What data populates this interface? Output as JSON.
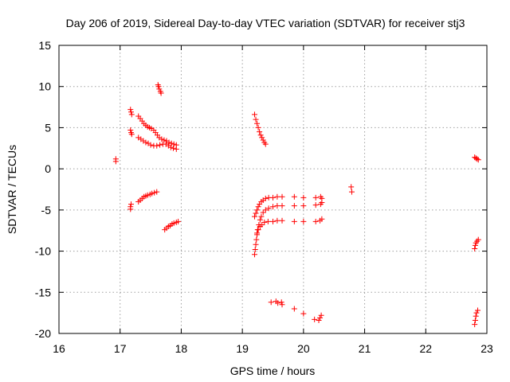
{
  "chart_data": {
    "type": "scatter",
    "title": "Day 206 of 2019, Sidereal Day-to-day VTEC variation (SDTVAR) for receiver stj3",
    "xlabel": "GPS time / hours",
    "ylabel": "SDTVAR / TECUs",
    "xlim": [
      16,
      23
    ],
    "ylim": [
      -20,
      15
    ],
    "xticks": [
      16,
      17,
      18,
      19,
      20,
      21,
      22,
      23
    ],
    "yticks": [
      -20,
      -15,
      -10,
      -5,
      0,
      5,
      10,
      15
    ],
    "xtick_labels": [
      "16",
      "17",
      "18",
      "19",
      "20",
      "21",
      "22",
      "23"
    ],
    "ytick_labels": [
      "-20",
      "-15",
      "-10",
      "-5",
      "0",
      "5",
      "10",
      "15"
    ],
    "grid": true,
    "marker": "+",
    "color": "#ff0000",
    "points": [
      [
        16.93,
        1.2
      ],
      [
        16.93,
        0.9
      ],
      [
        17.62,
        10.2
      ],
      [
        17.63,
        10.0
      ],
      [
        17.64,
        9.7
      ],
      [
        17.66,
        9.4
      ],
      [
        17.67,
        9.2
      ],
      [
        17.17,
        7.2
      ],
      [
        17.18,
        6.9
      ],
      [
        17.19,
        6.6
      ],
      [
        17.3,
        6.4
      ],
      [
        17.33,
        6.1
      ],
      [
        17.36,
        5.8
      ],
      [
        17.39,
        5.5
      ],
      [
        17.42,
        5.3
      ],
      [
        17.45,
        5.1
      ],
      [
        17.48,
        5.0
      ],
      [
        17.51,
        4.9
      ],
      [
        17.55,
        4.7
      ],
      [
        17.58,
        4.4
      ],
      [
        17.61,
        4.1
      ],
      [
        17.64,
        3.8
      ],
      [
        17.68,
        3.6
      ],
      [
        17.72,
        3.5
      ],
      [
        17.76,
        3.4
      ],
      [
        17.8,
        3.2
      ],
      [
        17.84,
        3.1
      ],
      [
        17.88,
        3.0
      ],
      [
        17.92,
        2.9
      ],
      [
        17.17,
        4.7
      ],
      [
        17.18,
        4.4
      ],
      [
        17.19,
        4.2
      ],
      [
        17.3,
        3.8
      ],
      [
        17.34,
        3.6
      ],
      [
        17.38,
        3.4
      ],
      [
        17.42,
        3.2
      ],
      [
        17.46,
        3.1
      ],
      [
        17.5,
        2.9
      ],
      [
        17.55,
        2.8
      ],
      [
        17.6,
        2.8
      ],
      [
        17.65,
        2.9
      ],
      [
        17.7,
        3.0
      ],
      [
        17.75,
        3.0
      ],
      [
        17.79,
        2.8
      ],
      [
        17.83,
        2.6
      ],
      [
        17.87,
        2.5
      ],
      [
        17.92,
        2.4
      ],
      [
        17.17,
        -4.6
      ],
      [
        17.17,
        -4.9
      ],
      [
        17.18,
        -4.3
      ],
      [
        17.3,
        -4.0
      ],
      [
        17.33,
        -3.8
      ],
      [
        17.36,
        -3.6
      ],
      [
        17.39,
        -3.4
      ],
      [
        17.42,
        -3.3
      ],
      [
        17.45,
        -3.2
      ],
      [
        17.49,
        -3.1
      ],
      [
        17.52,
        -3.0
      ],
      [
        17.56,
        -2.9
      ],
      [
        17.6,
        -2.8
      ],
      [
        17.73,
        -7.4
      ],
      [
        17.76,
        -7.2
      ],
      [
        17.79,
        -7.0
      ],
      [
        17.82,
        -6.9
      ],
      [
        17.85,
        -6.7
      ],
      [
        17.88,
        -6.6
      ],
      [
        17.92,
        -6.5
      ],
      [
        17.95,
        -6.4
      ],
      [
        19.2,
        6.6
      ],
      [
        19.22,
        6.0
      ],
      [
        19.24,
        5.5
      ],
      [
        19.26,
        5.0
      ],
      [
        19.28,
        4.5
      ],
      [
        19.3,
        4.1
      ],
      [
        19.32,
        3.8
      ],
      [
        19.34,
        3.5
      ],
      [
        19.36,
        3.2
      ],
      [
        19.38,
        3.0
      ],
      [
        19.2,
        -10.4
      ],
      [
        19.21,
        -9.8
      ],
      [
        19.22,
        -9.2
      ],
      [
        19.23,
        -8.6
      ],
      [
        19.24,
        -8.0
      ],
      [
        19.25,
        -7.4
      ],
      [
        19.27,
        -6.8
      ],
      [
        19.29,
        -6.2
      ],
      [
        19.31,
        -5.8
      ],
      [
        19.34,
        -5.3
      ],
      [
        19.38,
        -5.0
      ],
      [
        19.43,
        -4.8
      ],
      [
        19.5,
        -4.6
      ],
      [
        19.57,
        -4.5
      ],
      [
        19.65,
        -4.5
      ],
      [
        19.85,
        -4.5
      ],
      [
        20.0,
        -4.5
      ],
      [
        20.2,
        -4.4
      ],
      [
        20.28,
        -4.3
      ],
      [
        20.3,
        -4.1
      ],
      [
        19.2,
        -5.8
      ],
      [
        19.22,
        -5.4
      ],
      [
        19.24,
        -5.0
      ],
      [
        19.26,
        -4.6
      ],
      [
        19.28,
        -4.3
      ],
      [
        19.31,
        -4.0
      ],
      [
        19.34,
        -3.8
      ],
      [
        19.38,
        -3.6
      ],
      [
        19.43,
        -3.5
      ],
      [
        19.5,
        -3.5
      ],
      [
        19.57,
        -3.4
      ],
      [
        19.65,
        -3.4
      ],
      [
        19.85,
        -3.4
      ],
      [
        20.0,
        -3.5
      ],
      [
        20.2,
        -3.5
      ],
      [
        20.28,
        -3.4
      ],
      [
        20.3,
        -3.6
      ],
      [
        19.24,
        -7.8
      ],
      [
        19.26,
        -7.4
      ],
      [
        19.29,
        -7.0
      ],
      [
        19.32,
        -6.8
      ],
      [
        19.36,
        -6.5
      ],
      [
        19.42,
        -6.4
      ],
      [
        19.5,
        -6.4
      ],
      [
        19.57,
        -6.3
      ],
      [
        19.65,
        -6.3
      ],
      [
        19.85,
        -6.4
      ],
      [
        20.0,
        -6.4
      ],
      [
        20.2,
        -6.4
      ],
      [
        20.27,
        -6.3
      ],
      [
        20.3,
        -6.1
      ],
      [
        20.78,
        -2.2
      ],
      [
        20.79,
        -2.8
      ],
      [
        19.47,
        -16.2
      ],
      [
        19.55,
        -16.1
      ],
      [
        19.58,
        -16.3
      ],
      [
        19.64,
        -16.2
      ],
      [
        19.65,
        -16.5
      ],
      [
        19.85,
        -17.0
      ],
      [
        20.0,
        -17.6
      ],
      [
        20.18,
        -18.3
      ],
      [
        20.25,
        -18.4
      ],
      [
        20.27,
        -18.1
      ],
      [
        20.29,
        -17.8
      ],
      [
        22.8,
        1.4
      ],
      [
        22.82,
        1.3
      ],
      [
        22.84,
        1.2
      ],
      [
        22.86,
        1.1
      ],
      [
        22.8,
        -9.7
      ],
      [
        22.81,
        -9.3
      ],
      [
        22.82,
        -9.0
      ],
      [
        22.84,
        -8.8
      ],
      [
        22.86,
        -8.6
      ],
      [
        22.8,
        -18.9
      ],
      [
        22.81,
        -18.4
      ],
      [
        22.82,
        -17.9
      ],
      [
        22.83,
        -17.5
      ],
      [
        22.85,
        -17.2
      ]
    ]
  }
}
